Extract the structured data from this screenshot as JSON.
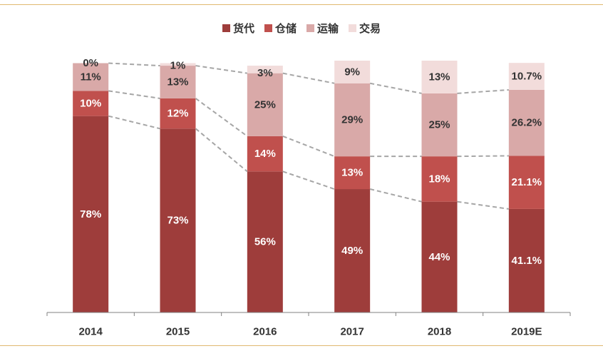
{
  "chart_data": {
    "type": "bar",
    "stacked": true,
    "categories": [
      "2014",
      "2015",
      "2016",
      "2017",
      "2018",
      "2019E"
    ],
    "series": [
      {
        "name": "货代",
        "color": "#9e3d3b",
        "values": [
          78,
          73,
          56,
          49,
          44,
          41.1
        ],
        "labels": [
          "78%",
          "73%",
          "56%",
          "49%",
          "44%",
          "41.1%"
        ]
      },
      {
        "name": "仓储",
        "color": "#c0504d",
        "values": [
          10,
          12,
          14,
          13,
          18,
          21.1
        ],
        "labels": [
          "10%",
          "12%",
          "14%",
          "13%",
          "18%",
          "21.1%"
        ]
      },
      {
        "name": "运输",
        "color": "#d9a9a8",
        "values": [
          11,
          13,
          25,
          29,
          25,
          26.2
        ],
        "labels": [
          "11%",
          "13%",
          "25%",
          "29%",
          "25%",
          "26.2%"
        ]
      },
      {
        "name": "交易",
        "color": "#f2dcdb",
        "values": [
          0,
          1,
          3,
          9,
          13,
          10.7
        ],
        "labels": [
          "0%",
          "1%",
          "3%",
          "9%",
          "13%",
          "10.7%"
        ]
      }
    ],
    "ylim": [
      0,
      100
    ],
    "legend": "top-center",
    "connector_lines": "dashed",
    "grid": false
  }
}
